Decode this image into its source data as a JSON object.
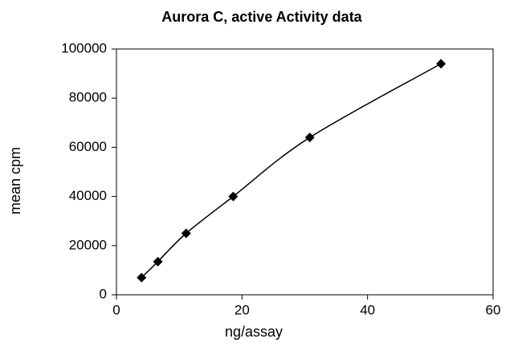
{
  "chart_data": {
    "type": "line",
    "title": "Aurora C, active Activity data",
    "xlabel": "ng/assay",
    "ylabel": "mean cpm",
    "x": [
      4,
      6.6,
      11.1,
      18.6,
      30.8,
      51.7
    ],
    "series": [
      {
        "name": "mean cpm",
        "color": "#000000",
        "values": [
          7000,
          13500,
          25000,
          40000,
          64000,
          94000
        ]
      }
    ],
    "xlim": [
      0,
      60
    ],
    "xticks": [
      0,
      20,
      40,
      60
    ],
    "ylim": [
      0,
      100000
    ],
    "yticks": [
      0,
      20000,
      40000,
      60000,
      80000,
      100000
    ],
    "grid": false,
    "smooth": true,
    "marker": "diamond"
  }
}
